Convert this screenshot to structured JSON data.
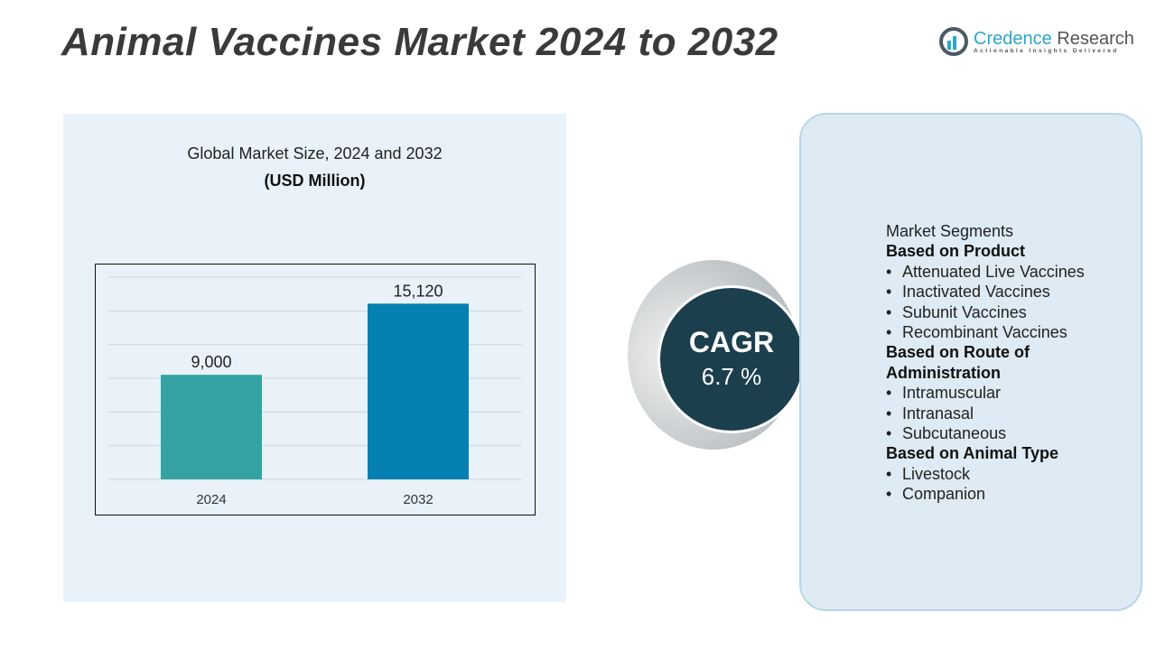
{
  "title": "Animal Vaccines Market 2024 to 2032",
  "logo": {
    "name_part1": "Credence",
    "name_part2": "Research",
    "tagline": "Actionable Insights Delivered"
  },
  "chart_panel": {
    "title": "Global Market Size,  2024 and 2032",
    "unit": "(USD Million)"
  },
  "chart_data": {
    "type": "bar",
    "title": "Global Market Size,  2024 and 2032",
    "ylabel": "(USD Million)",
    "categories": [
      "2024",
      "2032"
    ],
    "values": [
      9000,
      15120
    ],
    "data_labels": [
      "9,000",
      "15,120"
    ],
    "colors": [
      "#35a3a3",
      "#0680b0"
    ],
    "grid": true,
    "legend": "none"
  },
  "cagr": {
    "label": "CAGR",
    "value": "6.7 %"
  },
  "segments": {
    "heading": "Market Segments",
    "groups": [
      {
        "title": "Based on Product",
        "items": [
          "Attenuated Live Vaccines",
          "Inactivated Vaccines",
          "Subunit Vaccines",
          "Recombinant Vaccines"
        ]
      },
      {
        "title": "Based on Route of Administration",
        "items": [
          "Intramuscular",
          "Intranasal",
          "Subcutaneous"
        ]
      },
      {
        "title": "Based on Animal Type",
        "items": [
          "Livestock",
          "Companion"
        ]
      }
    ]
  }
}
